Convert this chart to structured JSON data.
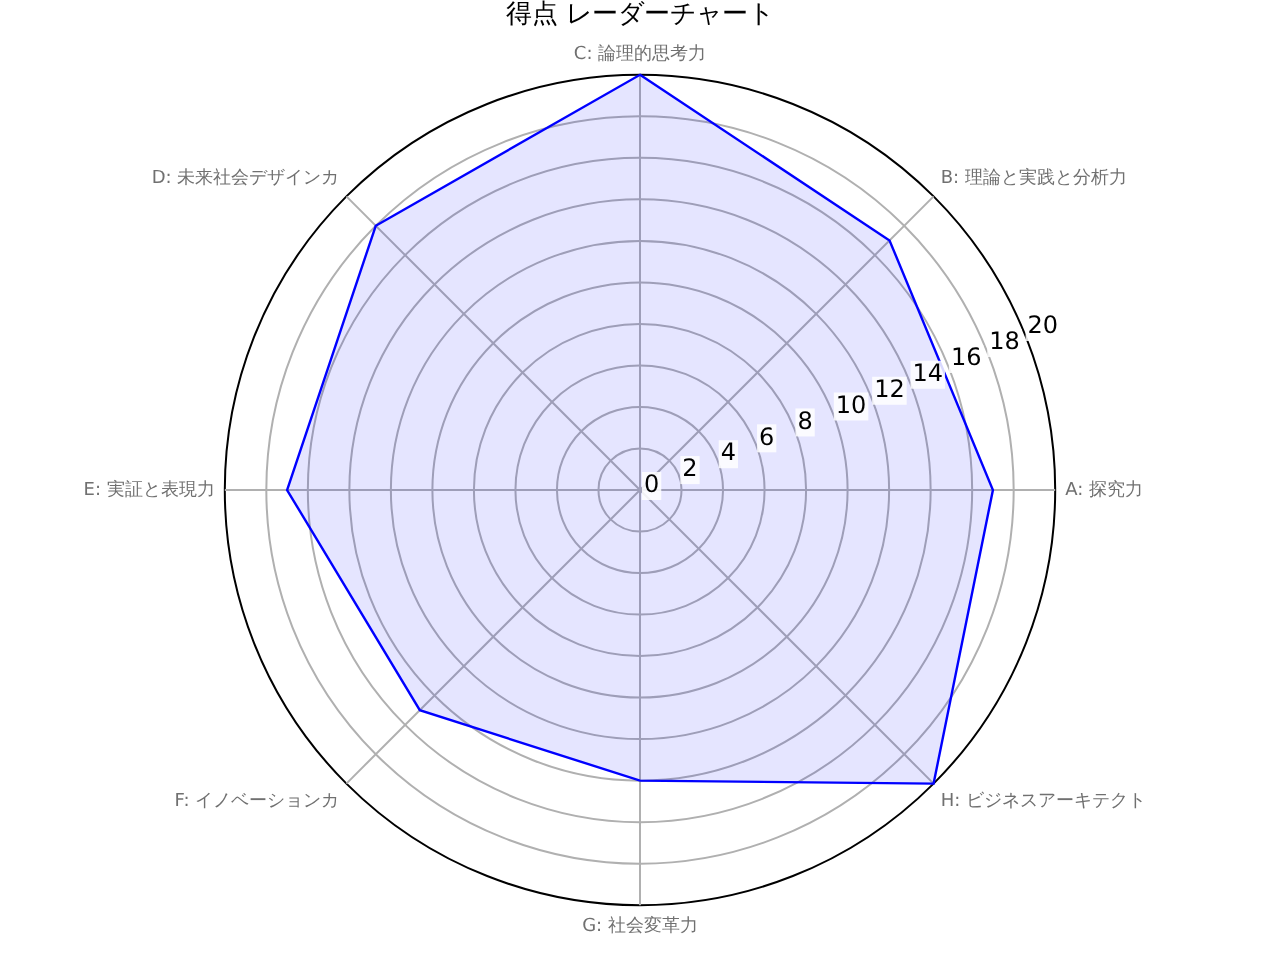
{
  "chart_data": {
    "type": "radar",
    "title": "得点 レーダーチャート",
    "categories": [
      "C: 論理的思考力",
      "B: 理論と実践と分析力",
      "A: 探究力",
      "H: ビジネスアーキテクト",
      "G: 社会変革力",
      "F: イノベーションカ",
      "E: 実証と表現力",
      "D: 未来社会デザインカ"
    ],
    "series": [
      {
        "color": "#0000ff",
        "values": [
          20,
          17,
          17,
          20,
          14,
          15,
          17,
          18
        ]
      }
    ],
    "ylim": [
      0,
      20
    ],
    "yticks": [
      0,
      2,
      4,
      6,
      8,
      10,
      12,
      14,
      16,
      18,
      20
    ],
    "grid": true,
    "legend": false,
    "marker": "none"
  }
}
